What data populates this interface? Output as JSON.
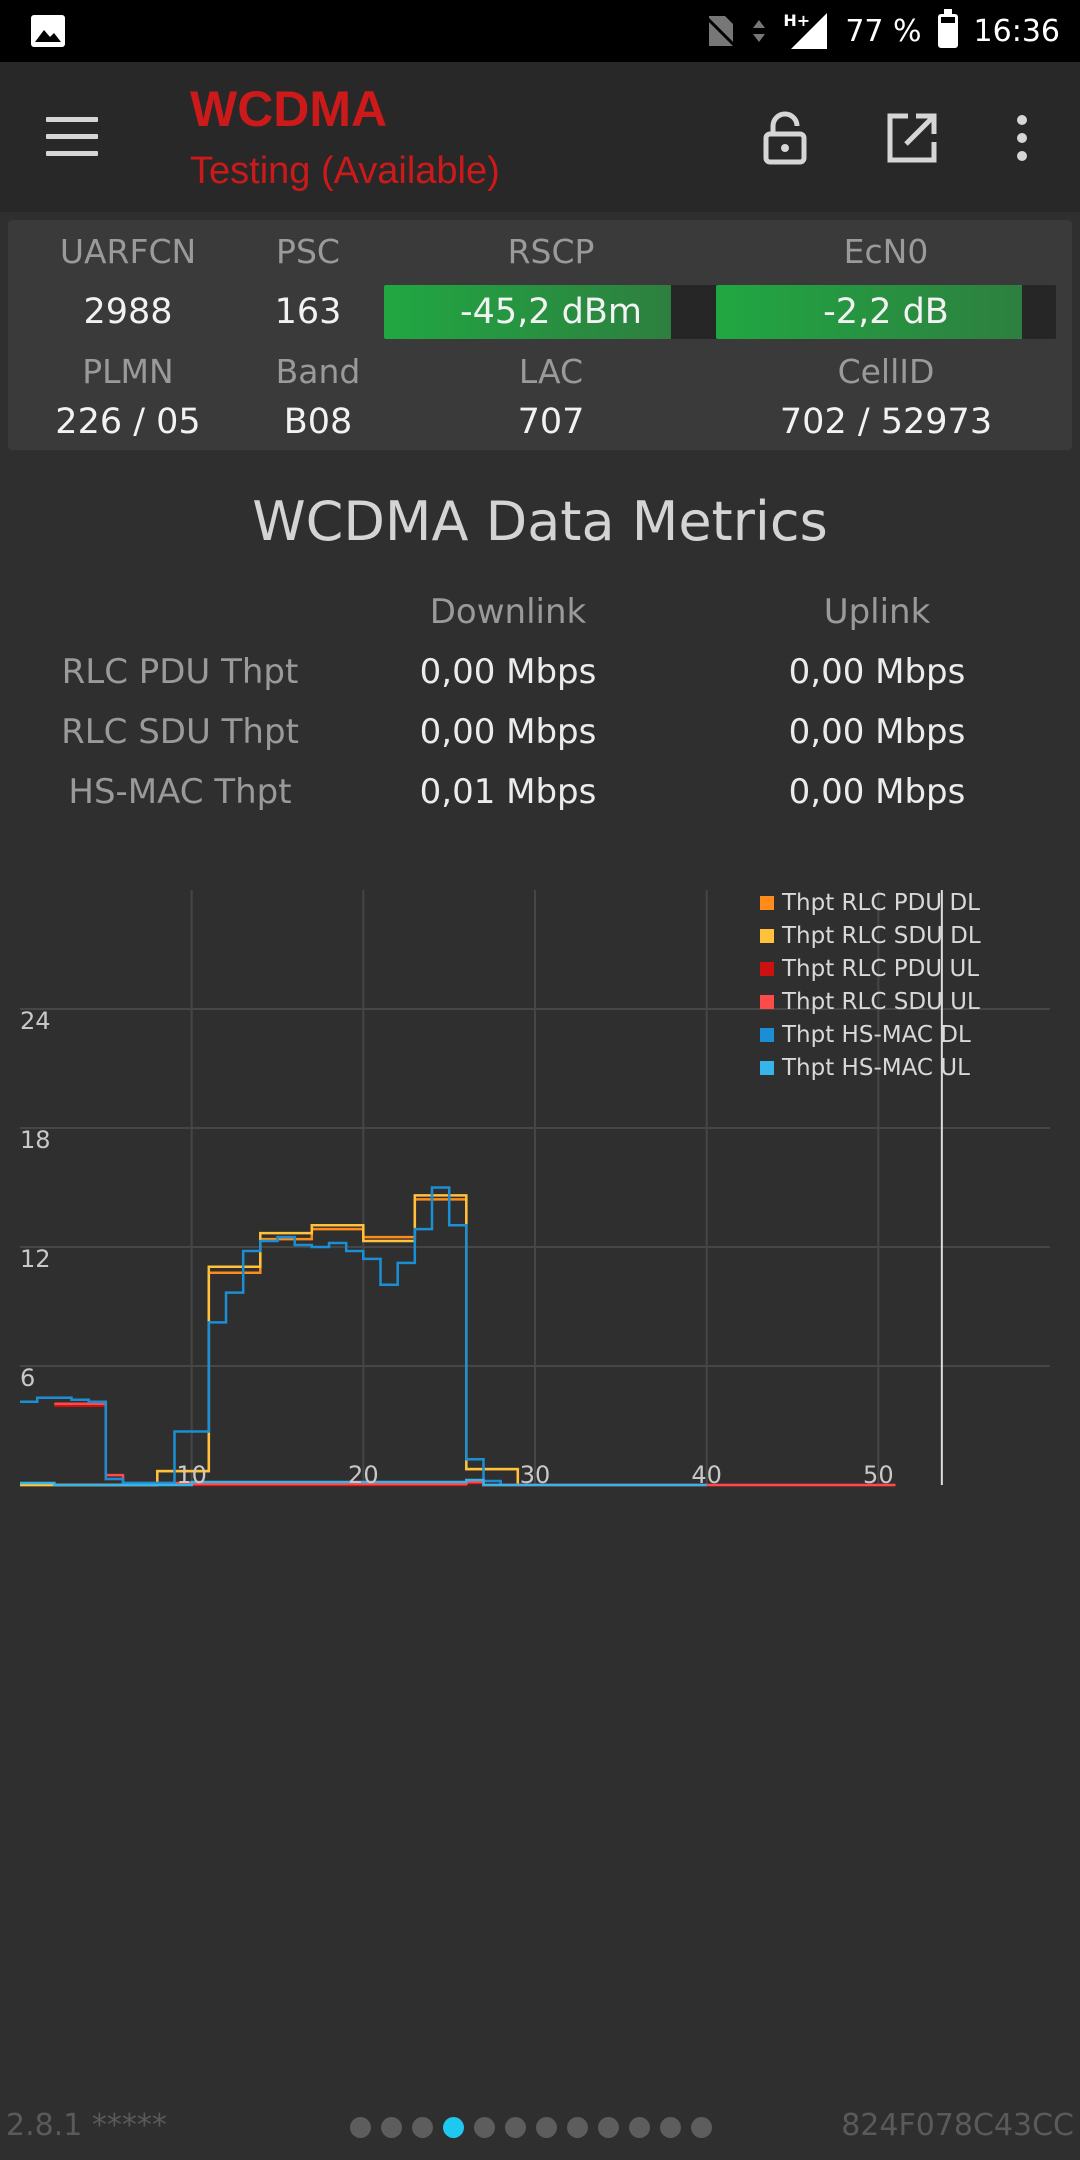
{
  "status_bar": {
    "left_icon": "image-icon",
    "network_type": "H+",
    "battery_text": "77 %",
    "battery_level": 0.77,
    "time": "16:36"
  },
  "app_bar": {
    "title": "WCDMA",
    "subtitle": "Testing (Available)",
    "accent_color": "#cc1a1a",
    "icons": [
      "menu-icon",
      "unlock-icon",
      "open-external-icon",
      "more-vert-icon"
    ]
  },
  "cell_info": {
    "uarfcn": {
      "label": "UARFCN",
      "value": "2988"
    },
    "psc": {
      "label": "PSC",
      "value": "163"
    },
    "rscp": {
      "label": "RSCP",
      "value": "-45,2 dBm",
      "level": 0.86
    },
    "ecn0": {
      "label": "EcN0",
      "value": "-2,2 dB",
      "level": 0.9
    },
    "plmn": {
      "label": "PLMN",
      "value": "226 / 05"
    },
    "band": {
      "label": "Band",
      "value": "B08"
    },
    "lac": {
      "label": "LAC",
      "value": "707"
    },
    "cellid": {
      "label": "CellID",
      "value": "702 / 52973"
    }
  },
  "metrics": {
    "title": "WCDMA Data Metrics",
    "col_downlink": "Downlink",
    "col_uplink": "Uplink",
    "rows": [
      {
        "label": "RLC PDU Thpt",
        "downlink": "0,00 Mbps",
        "uplink": "0,00 Mbps"
      },
      {
        "label": "RLC SDU Thpt",
        "downlink": "0,00 Mbps",
        "uplink": "0,00 Mbps"
      },
      {
        "label": "HS-MAC Thpt",
        "downlink": "0,01 Mbps",
        "uplink": "0,00 Mbps"
      }
    ]
  },
  "chart_data": {
    "type": "line",
    "step": true,
    "grid": true,
    "legend_position": "top-right",
    "xlim": [
      0,
      60
    ],
    "ylim": [
      0,
      30
    ],
    "x_ticks": [
      10,
      20,
      30,
      40,
      50
    ],
    "y_ticks": [
      6,
      12,
      18,
      24
    ],
    "marker_x": 53.7,
    "series": [
      {
        "name": "Thpt RLC PDU DL",
        "color": "#ff8c1a",
        "points": [
          [
            0,
            0
          ],
          [
            8,
            0
          ],
          [
            8,
            0.7
          ],
          [
            11,
            0.7
          ],
          [
            11,
            10.7
          ],
          [
            14,
            10.7
          ],
          [
            14,
            12.4
          ],
          [
            17,
            12.4
          ],
          [
            17,
            12.9
          ],
          [
            20,
            12.9
          ],
          [
            20,
            12.5
          ],
          [
            23,
            12.5
          ],
          [
            23,
            14.4
          ],
          [
            26,
            14.4
          ],
          [
            26,
            0.8
          ],
          [
            29,
            0.8
          ],
          [
            29,
            0
          ]
        ]
      },
      {
        "name": "Thpt RLC SDU DL",
        "color": "#ffc23a",
        "points": [
          [
            0,
            0
          ],
          [
            8,
            0
          ],
          [
            8,
            0.7
          ],
          [
            11,
            0.7
          ],
          [
            11,
            11.0
          ],
          [
            14,
            11.0
          ],
          [
            14,
            12.7
          ],
          [
            17,
            12.7
          ],
          [
            17,
            13.1
          ],
          [
            20,
            13.1
          ],
          [
            20,
            12.3
          ],
          [
            23,
            12.3
          ],
          [
            23,
            14.6
          ],
          [
            26,
            14.6
          ],
          [
            26,
            0.8
          ],
          [
            29,
            0.8
          ],
          [
            29,
            0
          ]
        ]
      },
      {
        "name": "Thpt RLC PDU UL",
        "color": "#cc1111",
        "points": [
          [
            2,
            4.0
          ],
          [
            5,
            4.0
          ],
          [
            5,
            0.3
          ],
          [
            6,
            0.3
          ],
          [
            6,
            0.05
          ],
          [
            10,
            0.05
          ],
          [
            10,
            0
          ],
          [
            26,
            0
          ],
          [
            26,
            0.1
          ],
          [
            27,
            0.1
          ],
          [
            27,
            0
          ],
          [
            41,
            0
          ],
          [
            48,
            0
          ],
          [
            51,
            0
          ]
        ]
      },
      {
        "name": "Thpt RLC SDU UL",
        "color": "#ff4a4a",
        "points": [
          [
            2,
            4.1
          ],
          [
            5,
            4.1
          ],
          [
            5,
            0.5
          ],
          [
            6,
            0.5
          ],
          [
            6,
            0.1
          ],
          [
            10,
            0.1
          ],
          [
            10,
            0.05
          ],
          [
            26,
            0.05
          ],
          [
            26,
            0.15
          ],
          [
            27,
            0.15
          ],
          [
            27,
            0
          ],
          [
            41,
            0
          ],
          [
            48,
            0
          ],
          [
            51,
            0
          ]
        ]
      },
      {
        "name": "Thpt HS-MAC DL",
        "color": "#1b8fd6",
        "points": [
          [
            0,
            4.2
          ],
          [
            1,
            4.2
          ],
          [
            1,
            4.4
          ],
          [
            3,
            4.4
          ],
          [
            3,
            4.3
          ],
          [
            4,
            4.3
          ],
          [
            4,
            4.2
          ],
          [
            5,
            4.2
          ],
          [
            5,
            0.3
          ],
          [
            6,
            0.3
          ],
          [
            6,
            0.1
          ],
          [
            9,
            0.1
          ],
          [
            9,
            2.7
          ],
          [
            11,
            2.7
          ],
          [
            11,
            8.2
          ],
          [
            12,
            8.2
          ],
          [
            12,
            9.7
          ],
          [
            13,
            9.7
          ],
          [
            13,
            11.8
          ],
          [
            14,
            11.8
          ],
          [
            14,
            12.3
          ],
          [
            15,
            12.3
          ],
          [
            15,
            12.5
          ],
          [
            16,
            12.5
          ],
          [
            16,
            12.1
          ],
          [
            17,
            12.1
          ],
          [
            17,
            12.0
          ],
          [
            18,
            12.0
          ],
          [
            18,
            12.2
          ],
          [
            19,
            12.2
          ],
          [
            19,
            11.8
          ],
          [
            20,
            11.8
          ],
          [
            20,
            11.4
          ],
          [
            21,
            11.4
          ],
          [
            21,
            10.1
          ],
          [
            22,
            10.1
          ],
          [
            22,
            11.2
          ],
          [
            23,
            11.2
          ],
          [
            23,
            12.9
          ],
          [
            24,
            12.9
          ],
          [
            24,
            15.0
          ],
          [
            25,
            15.0
          ],
          [
            25,
            13.1
          ],
          [
            26,
            13.1
          ],
          [
            26,
            1.3
          ],
          [
            27,
            1.3
          ],
          [
            27,
            0.2
          ],
          [
            28,
            0.2
          ],
          [
            28,
            0
          ]
        ]
      },
      {
        "name": "Thpt HS-MAC UL",
        "color": "#36b5ea",
        "points": [
          [
            0,
            0.1
          ],
          [
            2,
            0.1
          ],
          [
            2,
            0
          ],
          [
            10,
            0
          ],
          [
            10,
            0.15
          ],
          [
            26,
            0.15
          ],
          [
            26,
            0.25
          ],
          [
            27,
            0.25
          ],
          [
            27,
            0
          ],
          [
            40,
            0
          ]
        ]
      }
    ]
  },
  "pager": {
    "count": 12,
    "active_index": 3
  },
  "footer": {
    "version": "2.8.1 *****",
    "device_id": "824F078C43CC"
  }
}
